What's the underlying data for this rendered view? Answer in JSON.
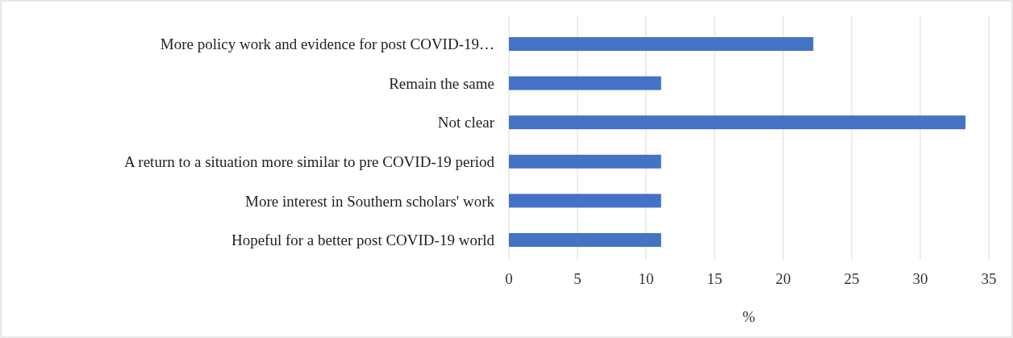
{
  "chart_data": {
    "type": "bar",
    "orientation": "horizontal",
    "xlabel": "%",
    "categories": [
      "More policy work and evidence for post COVID-19…",
      "Remain the same",
      "Not clear",
      "A return to a situation more similar to pre COVID-19 period",
      "More interest in Southern scholars' work",
      "Hopeful for a better post COVID-19 world"
    ],
    "values": [
      22.2,
      11.1,
      33.3,
      11.1,
      11.1,
      11.1
    ],
    "color": "#4472c4",
    "xlim": [
      0,
      35
    ],
    "xticks": [
      0,
      5,
      10,
      15,
      20,
      25,
      30,
      35
    ],
    "grid": "x"
  }
}
